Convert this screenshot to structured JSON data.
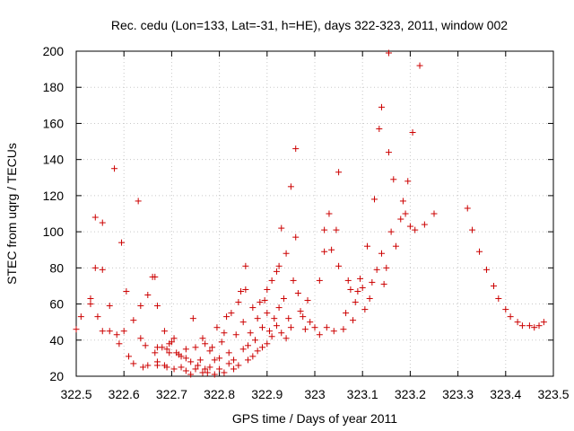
{
  "chart_data": {
    "type": "scatter",
    "title": "Rec. cedu (Lon=133, Lat=-31, h=HE), days 322-323, 2011, window 002",
    "xlabel": "GPS time / Days of year 2011",
    "ylabel": "STEC from uqrg / TECUs",
    "xlim": [
      322.5,
      323.5
    ],
    "ylim": [
      20,
      200
    ],
    "x_ticks": [
      322.5,
      322.6,
      322.7,
      322.8,
      322.9,
      323,
      323.1,
      323.2,
      323.3,
      323.4,
      323.5
    ],
    "x_tick_labels": [
      "322.5",
      "322.6",
      "322.7",
      "322.8",
      "322.9",
      "323",
      "323.1",
      "323.2",
      "323.3",
      "323.4",
      "323.5"
    ],
    "y_ticks": [
      20,
      40,
      60,
      80,
      100,
      120,
      140,
      160,
      180,
      200
    ],
    "y_tick_labels": [
      "20",
      "40",
      "60",
      "80",
      "100",
      "120",
      "140",
      "160",
      "180",
      "200"
    ],
    "grid": true,
    "legend": "none",
    "marker": "plus",
    "color": "#cc0000",
    "series": [
      {
        "points": [
          [
            322.5,
            46
          ],
          [
            322.51,
            53
          ],
          [
            322.53,
            60
          ],
          [
            322.53,
            63
          ],
          [
            322.54,
            80
          ],
          [
            322.54,
            108
          ],
          [
            322.545,
            53
          ],
          [
            322.555,
            79
          ],
          [
            322.555,
            105
          ],
          [
            322.555,
            45
          ],
          [
            322.57,
            59
          ],
          [
            322.57,
            45
          ],
          [
            322.58,
            135
          ],
          [
            322.585,
            43
          ],
          [
            322.59,
            38
          ],
          [
            322.595,
            94
          ],
          [
            322.6,
            45
          ],
          [
            322.605,
            67
          ],
          [
            322.61,
            31
          ],
          [
            322.62,
            27
          ],
          [
            322.62,
            51
          ],
          [
            322.63,
            117
          ],
          [
            322.635,
            41
          ],
          [
            322.635,
            59
          ],
          [
            322.64,
            25
          ],
          [
            322.645,
            37
          ],
          [
            322.65,
            26
          ],
          [
            322.65,
            65
          ],
          [
            322.66,
            75
          ],
          [
            322.665,
            33
          ],
          [
            322.665,
            75
          ],
          [
            322.67,
            26
          ],
          [
            322.67,
            28
          ],
          [
            322.67,
            36
          ],
          [
            322.67,
            59
          ],
          [
            322.68,
            36
          ],
          [
            322.685,
            45
          ],
          [
            322.685,
            26
          ],
          [
            322.69,
            25
          ],
          [
            322.69,
            35
          ],
          [
            322.695,
            38
          ],
          [
            322.695,
            33
          ],
          [
            322.7,
            39
          ],
          [
            322.705,
            24
          ],
          [
            322.705,
            41
          ],
          [
            322.71,
            33
          ],
          [
            322.715,
            32
          ],
          [
            322.72,
            25
          ],
          [
            322.72,
            31
          ],
          [
            322.73,
            23
          ],
          [
            322.73,
            30
          ],
          [
            322.73,
            35
          ],
          [
            322.74,
            21
          ],
          [
            322.74,
            28
          ],
          [
            322.745,
            52
          ],
          [
            322.75,
            24
          ],
          [
            322.75,
            36
          ],
          [
            322.755,
            26
          ],
          [
            322.76,
            29
          ],
          [
            322.765,
            22
          ],
          [
            322.765,
            41
          ],
          [
            322.77,
            24
          ],
          [
            322.77,
            38
          ],
          [
            322.775,
            22
          ],
          [
            322.78,
            25
          ],
          [
            322.78,
            34
          ],
          [
            322.785,
            36
          ],
          [
            322.79,
            21
          ],
          [
            322.79,
            29
          ],
          [
            322.795,
            47
          ],
          [
            322.8,
            24
          ],
          [
            322.8,
            30
          ],
          [
            322.805,
            39
          ],
          [
            322.81,
            22
          ],
          [
            322.81,
            44
          ],
          [
            322.815,
            53
          ],
          [
            322.82,
            27
          ],
          [
            322.82,
            33
          ],
          [
            322.825,
            55
          ],
          [
            322.83,
            24
          ],
          [
            322.83,
            29
          ],
          [
            322.835,
            43
          ],
          [
            322.84,
            26
          ],
          [
            322.84,
            61
          ],
          [
            322.845,
            67
          ],
          [
            322.85,
            35
          ],
          [
            322.85,
            50
          ],
          [
            322.855,
            68
          ],
          [
            322.855,
            81
          ],
          [
            322.86,
            29
          ],
          [
            322.86,
            37
          ],
          [
            322.865,
            44
          ],
          [
            322.87,
            31
          ],
          [
            322.87,
            58
          ],
          [
            322.875,
            40
          ],
          [
            322.88,
            34
          ],
          [
            322.88,
            52
          ],
          [
            322.885,
            61
          ],
          [
            322.89,
            36
          ],
          [
            322.89,
            47
          ],
          [
            322.895,
            62
          ],
          [
            322.9,
            38
          ],
          [
            322.9,
            55
          ],
          [
            322.9,
            68
          ],
          [
            322.905,
            45
          ],
          [
            322.91,
            42
          ],
          [
            322.91,
            73
          ],
          [
            322.915,
            52
          ],
          [
            322.92,
            78
          ],
          [
            322.92,
            48
          ],
          [
            322.925,
            58
          ],
          [
            322.925,
            81
          ],
          [
            322.93,
            44
          ],
          [
            322.93,
            102
          ],
          [
            322.935,
            63
          ],
          [
            322.94,
            41
          ],
          [
            322.94,
            88
          ],
          [
            322.945,
            52
          ],
          [
            322.95,
            125
          ],
          [
            322.95,
            47
          ],
          [
            322.955,
            73
          ],
          [
            322.96,
            146
          ],
          [
            322.96,
            97
          ],
          [
            322.965,
            66
          ],
          [
            322.97,
            56
          ],
          [
            322.975,
            53
          ],
          [
            322.98,
            46
          ],
          [
            322.985,
            62
          ],
          [
            322.99,
            50
          ],
          [
            323,
            47
          ],
          [
            323.01,
            43
          ],
          [
            323.01,
            73
          ],
          [
            323.02,
            89
          ],
          [
            323.02,
            101
          ],
          [
            323.025,
            47
          ],
          [
            323.03,
            110
          ],
          [
            323.035,
            90
          ],
          [
            323.04,
            45
          ],
          [
            323.045,
            101
          ],
          [
            323.05,
            133
          ],
          [
            323.05,
            81
          ],
          [
            323.06,
            46
          ],
          [
            323.065,
            55
          ],
          [
            323.07,
            73
          ],
          [
            323.075,
            68
          ],
          [
            323.08,
            51
          ],
          [
            323.085,
            61
          ],
          [
            323.09,
            67
          ],
          [
            323.095,
            74
          ],
          [
            323.1,
            69
          ],
          [
            323.105,
            57
          ],
          [
            323.11,
            92
          ],
          [
            323.115,
            63
          ],
          [
            323.12,
            72
          ],
          [
            323.125,
            118
          ],
          [
            323.13,
            79
          ],
          [
            323.135,
            157
          ],
          [
            323.14,
            169
          ],
          [
            323.14,
            88
          ],
          [
            323.145,
            71
          ],
          [
            323.15,
            80
          ],
          [
            323.155,
            144
          ],
          [
            323.155,
            199
          ],
          [
            323.16,
            100
          ],
          [
            323.165,
            129
          ],
          [
            323.17,
            92
          ],
          [
            323.18,
            107
          ],
          [
            323.185,
            117
          ],
          [
            323.19,
            110
          ],
          [
            323.195,
            128
          ],
          [
            323.2,
            103
          ],
          [
            323.205,
            155
          ],
          [
            323.21,
            101
          ],
          [
            323.22,
            192
          ],
          [
            323.23,
            104
          ],
          [
            323.25,
            110
          ],
          [
            323.32,
            113
          ],
          [
            323.33,
            101
          ],
          [
            323.345,
            89
          ],
          [
            323.36,
            79
          ],
          [
            323.375,
            70
          ],
          [
            323.385,
            63
          ],
          [
            323.4,
            57
          ],
          [
            323.41,
            53
          ],
          [
            323.425,
            50
          ],
          [
            323.435,
            48
          ],
          [
            323.45,
            48
          ],
          [
            323.46,
            47
          ],
          [
            323.47,
            48
          ],
          [
            323.48,
            50
          ]
        ]
      }
    ]
  }
}
